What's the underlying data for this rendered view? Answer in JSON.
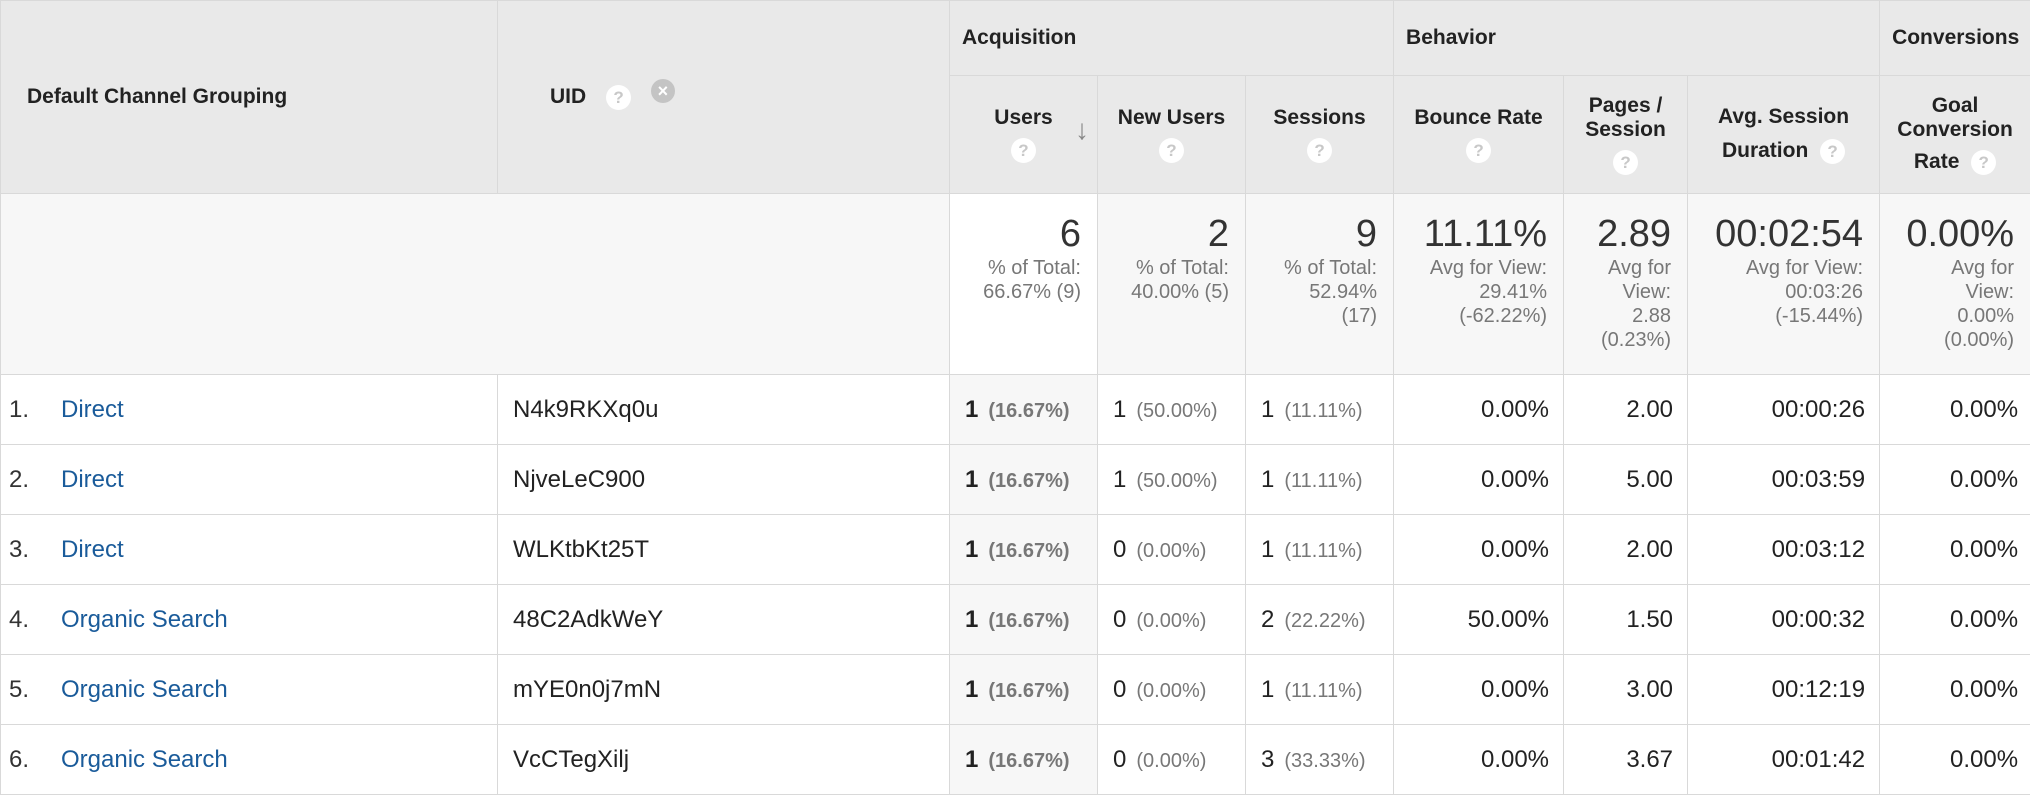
{
  "headers": {
    "dim1": "Default Channel Grouping",
    "dim2": "UID",
    "groups": {
      "acquisition": "Acquisition",
      "behavior": "Behavior",
      "conversions": "Conversions"
    },
    "metrics": {
      "users": "Users",
      "new_users": "New Users",
      "sessions": "Sessions",
      "bounce_rate": "Bounce Rate",
      "pages_session_1": "Pages /",
      "pages_session_2": "Session",
      "avg_session_1": "Avg. Session",
      "avg_session_2": "Duration",
      "goal_1": "Goal",
      "goal_2": "Conversion",
      "goal_3": "Rate"
    },
    "help_glyph": "?",
    "remove_glyph": "×",
    "sort_glyph": "↓"
  },
  "totals": {
    "users": {
      "value": "6",
      "d1": "% of Total:",
      "d2": "66.67% (9)"
    },
    "new_users": {
      "value": "2",
      "d1": "% of Total:",
      "d2": "40.00% (5)"
    },
    "sessions": {
      "value": "9",
      "d1": "% of Total:",
      "d2": "52.94%",
      "d3": "(17)"
    },
    "bounce_rate": {
      "value": "11.11%",
      "d1": "Avg for View:",
      "d2": "29.41%",
      "d3": "(-62.22%)"
    },
    "pages_session": {
      "value": "2.89",
      "d1": "Avg for",
      "d2": "View:",
      "d3": "2.88",
      "d4": "(0.23%)"
    },
    "avg_session": {
      "value": "00:02:54",
      "d1": "Avg for View:",
      "d2": "00:03:26",
      "d3": "(-15.44%)"
    },
    "goal_rate": {
      "value": "0.00%",
      "d1": "Avg for",
      "d2": "View:",
      "d3": "0.00%",
      "d4": "(0.00%)"
    }
  },
  "rows": [
    {
      "num": "1.",
      "channel": "Direct",
      "uid": "N4k9RKXq0u",
      "users": "1",
      "users_pct": "(16.67%)",
      "new_users": "1",
      "new_users_pct": "(50.00%)",
      "sessions": "1",
      "sessions_pct": "(11.11%)",
      "bounce": "0.00%",
      "pages": "2.00",
      "duration": "00:00:26",
      "goal": "0.00%"
    },
    {
      "num": "2.",
      "channel": "Direct",
      "uid": "NjveLeC900",
      "users": "1",
      "users_pct": "(16.67%)",
      "new_users": "1",
      "new_users_pct": "(50.00%)",
      "sessions": "1",
      "sessions_pct": "(11.11%)",
      "bounce": "0.00%",
      "pages": "5.00",
      "duration": "00:03:59",
      "goal": "0.00%"
    },
    {
      "num": "3.",
      "channel": "Direct",
      "uid": "WLKtbKt25T",
      "users": "1",
      "users_pct": "(16.67%)",
      "new_users": "0",
      "new_users_pct": "(0.00%)",
      "sessions": "1",
      "sessions_pct": "(11.11%)",
      "bounce": "0.00%",
      "pages": "2.00",
      "duration": "00:03:12",
      "goal": "0.00%"
    },
    {
      "num": "4.",
      "channel": "Organic Search",
      "uid": "48C2AdkWeY",
      "users": "1",
      "users_pct": "(16.67%)",
      "new_users": "0",
      "new_users_pct": "(0.00%)",
      "sessions": "2",
      "sessions_pct": "(22.22%)",
      "bounce": "50.00%",
      "pages": "1.50",
      "duration": "00:00:32",
      "goal": "0.00%"
    },
    {
      "num": "5.",
      "channel": "Organic Search",
      "uid": "mYE0n0j7mN",
      "users": "1",
      "users_pct": "(16.67%)",
      "new_users": "0",
      "new_users_pct": "(0.00%)",
      "sessions": "1",
      "sessions_pct": "(11.11%)",
      "bounce": "0.00%",
      "pages": "3.00",
      "duration": "00:12:19",
      "goal": "0.00%"
    },
    {
      "num": "6.",
      "channel": "Organic Search",
      "uid": "VcCTegXilj",
      "users": "1",
      "users_pct": "(16.67%)",
      "new_users": "0",
      "new_users_pct": "(0.00%)",
      "sessions": "3",
      "sessions_pct": "(33.33%)",
      "bounce": "0.00%",
      "pages": "3.67",
      "duration": "00:01:42",
      "goal": "0.00%"
    }
  ]
}
